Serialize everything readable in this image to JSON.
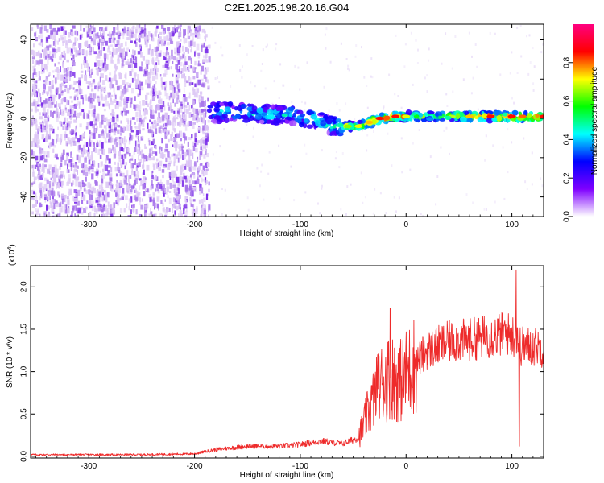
{
  "figure": {
    "title": "C2E1.2025.198.20.16.G04"
  },
  "chart_data": [
    {
      "type": "heatmap",
      "xlabel": "Height of straight line (km)",
      "ylabel": "Frequency (Hz)",
      "xlim": [
        -355,
        130
      ],
      "ylim": [
        -50,
        48
      ],
      "x_ticks": [
        -300,
        -200,
        -100,
        0,
        100
      ],
      "y_ticks": [
        -40,
        -20,
        0,
        20,
        40
      ],
      "colorbar": {
        "label": "Normalized spectral amplitude",
        "range": [
          0,
          1
        ],
        "ticks": [
          0.0,
          0.2,
          0.4,
          0.6,
          0.8
        ],
        "tick_labels": [
          "0.0",
          "0.2",
          "0.4",
          "0.6",
          "0.8"
        ],
        "colormap": [
          "#ffffff",
          "#7f00ff",
          "#0000ff",
          "#00ffff",
          "#00ff00",
          "#ffff00",
          "#ff0000",
          "#ff0080"
        ]
      },
      "regions": [
        {
          "name": "noise",
          "x_range": [
            -355,
            -187
          ],
          "freq_range": [
            -50,
            48
          ],
          "level": 0.08
        },
        {
          "name": "signal",
          "x_range": [
            -187,
            130
          ],
          "level": 0.45
        }
      ],
      "signal_ridge": {
        "x": [
          -185,
          -170,
          -150,
          -130,
          -110,
          -90,
          -75,
          -65,
          -55,
          -45,
          -35,
          -25,
          -10,
          0,
          20,
          40,
          60,
          80,
          100,
          110,
          130
        ],
        "freq": [
          3,
          3,
          3,
          2,
          2,
          0,
          -3,
          -4,
          -4,
          -4,
          -2,
          0,
          1,
          1,
          1,
          1,
          1,
          1,
          1,
          1,
          1
        ],
        "amplitude": [
          0.35,
          0.4,
          0.4,
          0.4,
          0.4,
          0.45,
          0.4,
          0.5,
          0.65,
          0.7,
          0.75,
          0.85,
          0.85,
          0.7,
          0.6,
          0.6,
          0.75,
          0.85,
          0.85,
          0.8,
          0.85
        ]
      }
    },
    {
      "type": "line",
      "xlabel": "Height of straight line (km)",
      "ylabel": "SNR (10 * v/v)",
      "y_multiplier": "(x10",
      "y_multiplier_exp": "4",
      "y_multiplier_close": ")",
      "xlim": [
        -355,
        130
      ],
      "ylim": [
        -0.02,
        2.25
      ],
      "x_ticks": [
        -300,
        -200,
        -100,
        0,
        100
      ],
      "y_ticks": [
        0.0,
        0.5,
        1.0,
        1.5,
        2.0
      ],
      "y_tick_labels": [
        "0.0",
        "0.5",
        "1.0",
        "1.5",
        "2.0"
      ],
      "color": "#ee2b2b",
      "envelope": {
        "x": [
          -355,
          -300,
          -250,
          -200,
          -180,
          -150,
          -120,
          -100,
          -80,
          -60,
          -45,
          -35,
          -25,
          -15,
          -5,
          5,
          20,
          40,
          60,
          80,
          95,
          100,
          105,
          108,
          115,
          130
        ],
        "y": [
          0.02,
          0.02,
          0.02,
          0.03,
          0.08,
          0.12,
          0.12,
          0.14,
          0.18,
          0.15,
          0.22,
          0.55,
          0.85,
          0.95,
          0.9,
          1.05,
          1.25,
          1.35,
          1.38,
          1.42,
          1.45,
          1.42,
          1.45,
          1.3,
          1.3,
          1.28
        ]
      },
      "features": [
        {
          "x": -15,
          "y": 1.75
        },
        {
          "x": -27,
          "y": 1.2
        },
        {
          "x": 104,
          "y": 2.2
        },
        {
          "x": 107,
          "y": 0.12
        }
      ]
    }
  ]
}
